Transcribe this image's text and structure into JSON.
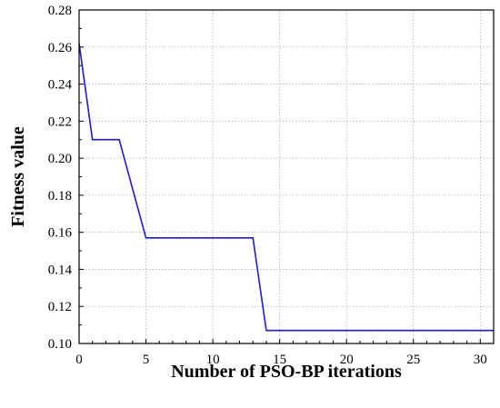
{
  "chart_data": {
    "type": "line",
    "xlabel": "Number of PSO-BP iterations",
    "ylabel": "Fitness value",
    "xlim": [
      0,
      31
    ],
    "ylim": [
      0.1,
      0.28
    ],
    "x_ticks": [
      0,
      5,
      10,
      15,
      20,
      25,
      30
    ],
    "y_ticks": [
      0.1,
      0.12,
      0.14,
      0.16,
      0.18,
      0.2,
      0.22,
      0.24,
      0.26,
      0.28
    ],
    "x_tick_labels": [
      "0",
      "5",
      "10",
      "15",
      "20",
      "25",
      "30"
    ],
    "y_tick_labels": [
      "0.10",
      "0.12",
      "0.14",
      "0.16",
      "0.18",
      "0.20",
      "0.22",
      "0.24",
      "0.26",
      "0.28"
    ],
    "grid": true,
    "series": [
      {
        "color": "#1a1adb",
        "x": [
          0,
          1,
          3,
          5,
          13,
          14,
          31
        ],
        "y": [
          0.262,
          0.21,
          0.21,
          0.157,
          0.157,
          0.107,
          0.107
        ]
      }
    ]
  }
}
